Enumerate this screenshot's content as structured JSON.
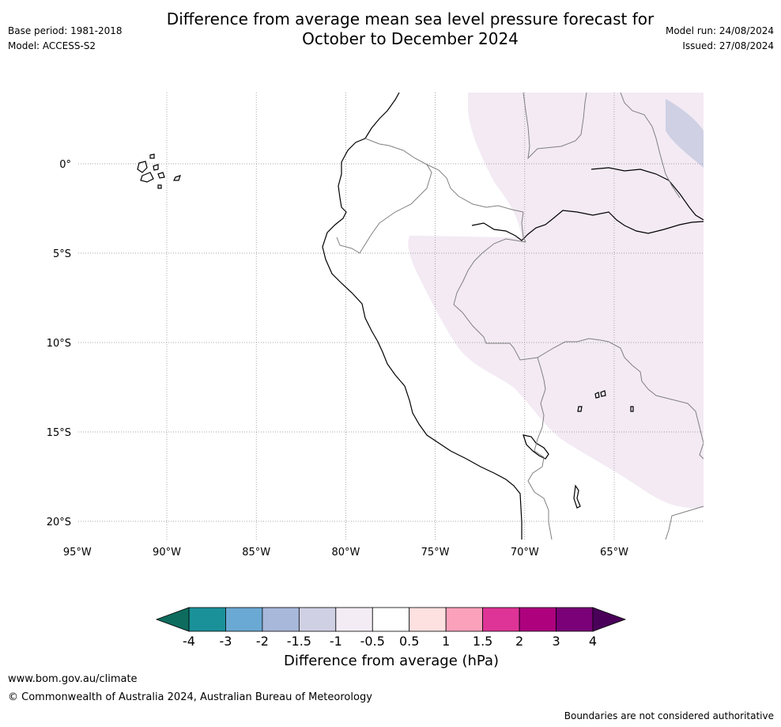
{
  "header": {
    "title_line1": "Difference from average mean sea level pressure forecast for",
    "title_line2": "October to December 2024",
    "base_period": "Base period: 1981-2018",
    "model": "Model: ACCESS-S2",
    "model_run": "Model run: 24/08/2024",
    "issued": "Issued: 27/08/2024"
  },
  "map": {
    "lat_labels": [
      "0°",
      "5°S",
      "10°S",
      "15°S",
      "20°S"
    ],
    "lon_labels": [
      "95°W",
      "90°W",
      "85°W",
      "80°W",
      "75°W",
      "70°W",
      "65°W"
    ],
    "lat_values": [
      0,
      -5,
      -10,
      -15,
      -20
    ],
    "lon_values": [
      -95,
      -90,
      -85,
      -80,
      -75,
      -70,
      -65
    ],
    "shaded_category": "-1 to -0.5",
    "shaded_color": "#f3eaf4",
    "weak_category": "-1.5 to -1",
    "weak_color": "#cfd0e4",
    "coast_color": "#000000",
    "border_color": "#808080"
  },
  "colorbar": {
    "title": "Difference from average (hPa)",
    "ticks": [
      "-4",
      "-3",
      "-2",
      "-1.5",
      "-1",
      "-0.5",
      "0.5",
      "1",
      "1.5",
      "2",
      "3",
      "4"
    ],
    "colors": [
      "#1a9199",
      "#6aa9d3",
      "#a8b8da",
      "#d0d0e4",
      "#f3ecf4",
      "#ffffff",
      "#fde0e0",
      "#fba1bb",
      "#de3497",
      "#ad017e",
      "#7a0177"
    ],
    "under_color": "#0e6c5e",
    "over_color": "#4a0059"
  },
  "footer": {
    "url": "www.bom.gov.au/climate",
    "copyright": "© Commonwealth of Australia 2024, Australian Bureau of Meteorology",
    "note": "Boundaries are not considered authoritative"
  }
}
